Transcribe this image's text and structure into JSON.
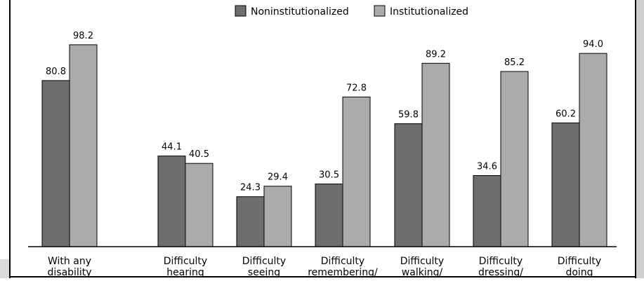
{
  "chart_data": {
    "type": "bar",
    "categories": [
      [
        "With any",
        "disability"
      ],
      [
        "Difficulty",
        "hearing"
      ],
      [
        "Difficulty",
        "seeing"
      ],
      [
        "Difficulty",
        "remembering/"
      ],
      [
        "Difficulty",
        "walking/"
      ],
      [
        "Difficulty",
        "dressing/"
      ],
      [
        "Difficulty",
        "doing"
      ]
    ],
    "series": [
      {
        "name": "Noninstitutionalized",
        "color": "#6e6e6e",
        "values": [
          80.8,
          44.1,
          24.3,
          30.5,
          59.8,
          34.6,
          60.2
        ],
        "labels": [
          "80.8",
          "44.1",
          "24.3",
          "30.5",
          "59.8",
          "34.6",
          "60.2"
        ]
      },
      {
        "name": "Institutionalized",
        "color": "#ababab",
        "values": [
          98.2,
          40.5,
          29.4,
          72.8,
          89.2,
          85.2,
          94.0
        ],
        "labels": [
          "98.2",
          "40.5",
          "29.4",
          "72.8",
          "89.2",
          "85.2",
          "94.0"
        ]
      }
    ],
    "ylim": [
      0,
      100
    ],
    "grid": false,
    "legend": "top-center"
  }
}
